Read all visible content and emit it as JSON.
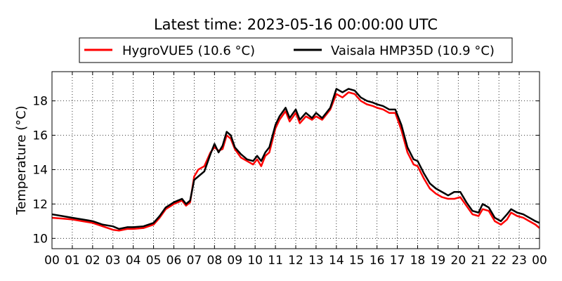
{
  "chart_data": {
    "type": "line",
    "title": "Latest time: 2023-05-16 00:00:00 UTC",
    "ylabel": "Temperature (°C)",
    "xlabel": "",
    "xlim": [
      0,
      24
    ],
    "ylim": [
      9.4,
      19.7
    ],
    "x_tick_labels": [
      "00",
      "01",
      "02",
      "03",
      "04",
      "05",
      "06",
      "07",
      "08",
      "09",
      "10",
      "11",
      "12",
      "13",
      "14",
      "15",
      "16",
      "17",
      "18",
      "19",
      "20",
      "21",
      "22",
      "23",
      "00"
    ],
    "y_ticks": [
      10,
      12,
      14,
      16,
      18
    ],
    "grid": true,
    "legend_position": "top-center",
    "series": [
      {
        "name": "HygroVUE5 (10.6 °C)",
        "color": "#ff0000",
        "points": [
          [
            0,
            11.2
          ],
          [
            0.5,
            11.15
          ],
          [
            1,
            11.1
          ],
          [
            1.5,
            11.0
          ],
          [
            2,
            10.9
          ],
          [
            2.5,
            10.7
          ],
          [
            3,
            10.5
          ],
          [
            3.3,
            10.45
          ],
          [
            3.7,
            10.55
          ],
          [
            4,
            10.55
          ],
          [
            4.5,
            10.6
          ],
          [
            5,
            10.8
          ],
          [
            5.3,
            11.2
          ],
          [
            5.6,
            11.7
          ],
          [
            6,
            12.0
          ],
          [
            6.4,
            12.2
          ],
          [
            6.6,
            11.9
          ],
          [
            6.8,
            12.1
          ],
          [
            7,
            13.6
          ],
          [
            7.2,
            14.0
          ],
          [
            7.5,
            14.2
          ],
          [
            7.8,
            15.0
          ],
          [
            8,
            15.3
          ],
          [
            8.2,
            15.1
          ],
          [
            8.4,
            15.2
          ],
          [
            8.6,
            16.0
          ],
          [
            8.8,
            15.8
          ],
          [
            9,
            15.2
          ],
          [
            9.3,
            14.7
          ],
          [
            9.6,
            14.5
          ],
          [
            9.9,
            14.3
          ],
          [
            10.1,
            14.6
          ],
          [
            10.3,
            14.2
          ],
          [
            10.5,
            14.8
          ],
          [
            10.7,
            15.0
          ],
          [
            11,
            16.4
          ],
          [
            11.2,
            16.9
          ],
          [
            11.5,
            17.4
          ],
          [
            11.7,
            16.8
          ],
          [
            12,
            17.3
          ],
          [
            12.2,
            16.7
          ],
          [
            12.5,
            17.1
          ],
          [
            12.8,
            16.9
          ],
          [
            13,
            17.1
          ],
          [
            13.3,
            16.9
          ],
          [
            13.5,
            17.2
          ],
          [
            13.7,
            17.5
          ],
          [
            14,
            18.4
          ],
          [
            14.3,
            18.2
          ],
          [
            14.6,
            18.5
          ],
          [
            14.9,
            18.4
          ],
          [
            15.2,
            18.0
          ],
          [
            15.5,
            17.8
          ],
          [
            15.8,
            17.7
          ],
          [
            16,
            17.6
          ],
          [
            16.3,
            17.5
          ],
          [
            16.6,
            17.3
          ],
          [
            16.9,
            17.3
          ],
          [
            17.2,
            16.3
          ],
          [
            17.5,
            15.0
          ],
          [
            17.8,
            14.3
          ],
          [
            18,
            14.2
          ],
          [
            18.3,
            13.5
          ],
          [
            18.6,
            12.9
          ],
          [
            18.9,
            12.6
          ],
          [
            19.2,
            12.4
          ],
          [
            19.5,
            12.3
          ],
          [
            19.8,
            12.3
          ],
          [
            20.1,
            12.4
          ],
          [
            20.4,
            11.9
          ],
          [
            20.7,
            11.4
          ],
          [
            21,
            11.3
          ],
          [
            21.2,
            11.7
          ],
          [
            21.5,
            11.6
          ],
          [
            21.8,
            11.0
          ],
          [
            22.1,
            10.8
          ],
          [
            22.4,
            11.1
          ],
          [
            22.6,
            11.5
          ],
          [
            22.9,
            11.3
          ],
          [
            23.2,
            11.2
          ],
          [
            23.5,
            11.0
          ],
          [
            23.8,
            10.8
          ],
          [
            24,
            10.6
          ]
        ]
      },
      {
        "name": "Vaisala HMP35D (10.9 °C)",
        "color": "#000000",
        "points": [
          [
            0,
            11.4
          ],
          [
            0.5,
            11.3
          ],
          [
            1,
            11.2
          ],
          [
            1.5,
            11.1
          ],
          [
            2,
            11.0
          ],
          [
            2.5,
            10.8
          ],
          [
            3,
            10.7
          ],
          [
            3.3,
            10.55
          ],
          [
            3.7,
            10.65
          ],
          [
            4,
            10.65
          ],
          [
            4.5,
            10.7
          ],
          [
            5,
            10.9
          ],
          [
            5.3,
            11.3
          ],
          [
            5.6,
            11.8
          ],
          [
            6,
            12.1
          ],
          [
            6.4,
            12.3
          ],
          [
            6.6,
            12.0
          ],
          [
            6.8,
            12.2
          ],
          [
            7,
            13.4
          ],
          [
            7.2,
            13.6
          ],
          [
            7.5,
            13.9
          ],
          [
            7.8,
            14.9
          ],
          [
            8,
            15.5
          ],
          [
            8.2,
            15.0
          ],
          [
            8.4,
            15.4
          ],
          [
            8.6,
            16.2
          ],
          [
            8.8,
            16.0
          ],
          [
            9,
            15.3
          ],
          [
            9.3,
            14.9
          ],
          [
            9.6,
            14.6
          ],
          [
            9.9,
            14.5
          ],
          [
            10.1,
            14.8
          ],
          [
            10.3,
            14.5
          ],
          [
            10.5,
            15.0
          ],
          [
            10.7,
            15.3
          ],
          [
            11,
            16.6
          ],
          [
            11.2,
            17.1
          ],
          [
            11.5,
            17.6
          ],
          [
            11.7,
            17.0
          ],
          [
            12,
            17.5
          ],
          [
            12.2,
            16.9
          ],
          [
            12.5,
            17.3
          ],
          [
            12.8,
            17.0
          ],
          [
            13,
            17.3
          ],
          [
            13.3,
            17.0
          ],
          [
            13.5,
            17.3
          ],
          [
            13.7,
            17.6
          ],
          [
            14,
            18.7
          ],
          [
            14.3,
            18.5
          ],
          [
            14.6,
            18.7
          ],
          [
            14.9,
            18.6
          ],
          [
            15.2,
            18.2
          ],
          [
            15.5,
            18.0
          ],
          [
            15.8,
            17.9
          ],
          [
            16,
            17.8
          ],
          [
            16.3,
            17.7
          ],
          [
            16.6,
            17.5
          ],
          [
            16.9,
            17.5
          ],
          [
            17.2,
            16.6
          ],
          [
            17.5,
            15.3
          ],
          [
            17.8,
            14.6
          ],
          [
            18,
            14.5
          ],
          [
            18.3,
            13.8
          ],
          [
            18.6,
            13.2
          ],
          [
            18.9,
            12.9
          ],
          [
            19.2,
            12.7
          ],
          [
            19.5,
            12.5
          ],
          [
            19.8,
            12.7
          ],
          [
            20.1,
            12.7
          ],
          [
            20.4,
            12.1
          ],
          [
            20.7,
            11.6
          ],
          [
            21,
            11.5
          ],
          [
            21.2,
            12.0
          ],
          [
            21.5,
            11.8
          ],
          [
            21.8,
            11.2
          ],
          [
            22.1,
            11.0
          ],
          [
            22.4,
            11.4
          ],
          [
            22.6,
            11.7
          ],
          [
            22.9,
            11.5
          ],
          [
            23.2,
            11.4
          ],
          [
            23.5,
            11.2
          ],
          [
            23.8,
            11.0
          ],
          [
            24,
            10.9
          ]
        ]
      }
    ]
  }
}
